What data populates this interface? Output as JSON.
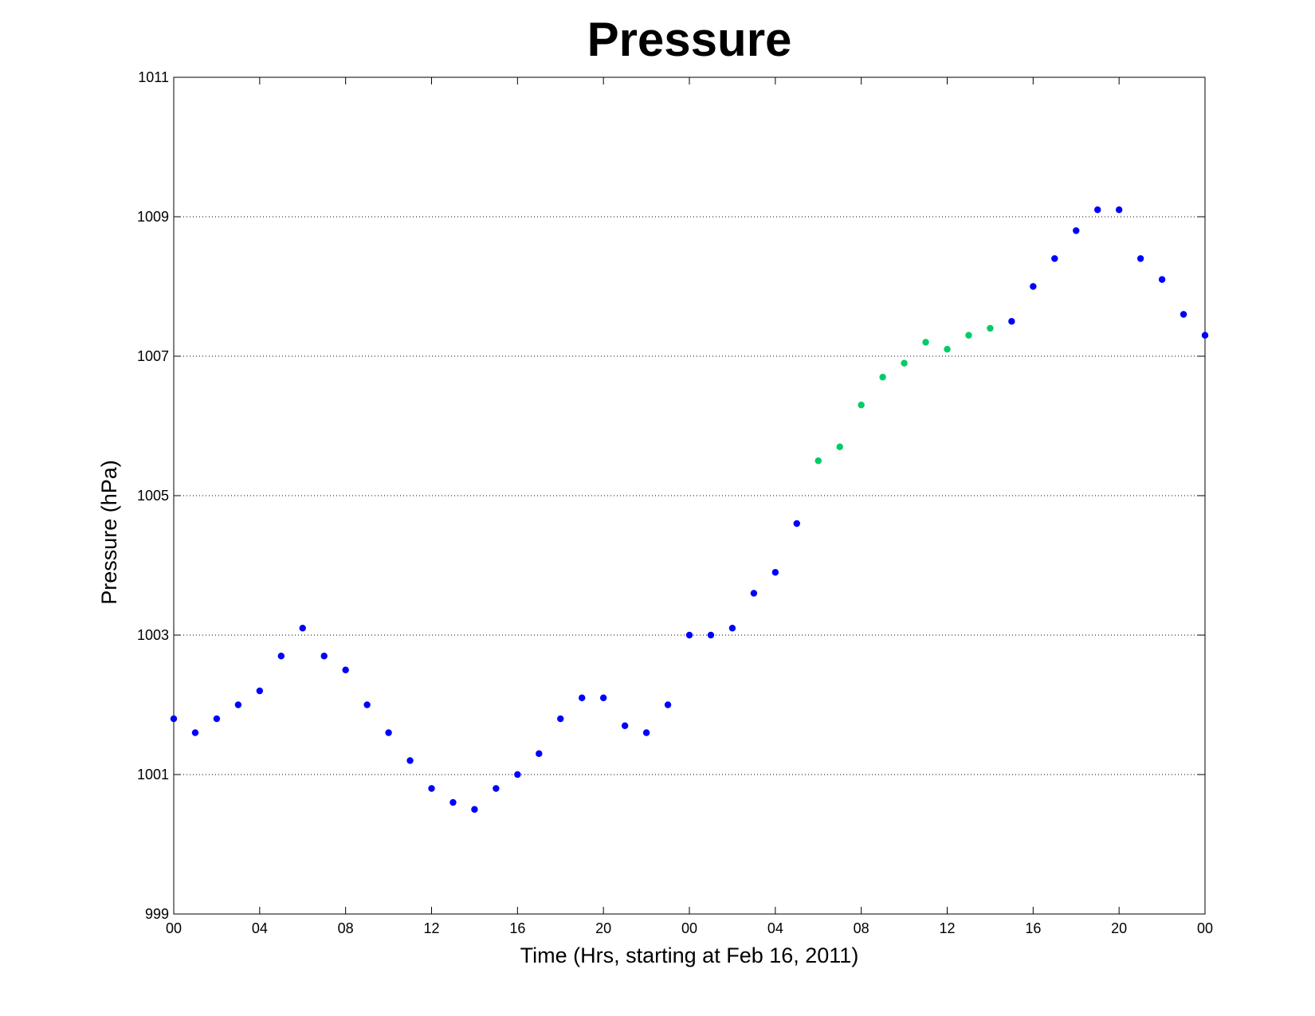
{
  "chart_data": {
    "type": "scatter",
    "title": "Pressure",
    "xlabel": "Time (Hrs, starting at Feb 16, 2011)",
    "ylabel": "Pressure (hPa)",
    "xlim": [
      0,
      48
    ],
    "ylim": [
      999,
      1011
    ],
    "x_ticks": [
      {
        "x": 0,
        "label": "00"
      },
      {
        "x": 4,
        "label": "04"
      },
      {
        "x": 8,
        "label": "08"
      },
      {
        "x": 12,
        "label": "12"
      },
      {
        "x": 16,
        "label": "16"
      },
      {
        "x": 20,
        "label": "20"
      },
      {
        "x": 24,
        "label": "00"
      },
      {
        "x": 28,
        "label": "04"
      },
      {
        "x": 32,
        "label": "08"
      },
      {
        "x": 36,
        "label": "12"
      },
      {
        "x": 40,
        "label": "16"
      },
      {
        "x": 44,
        "label": "20"
      },
      {
        "x": 48,
        "label": "00"
      }
    ],
    "y_ticks": [
      999,
      1001,
      1003,
      1005,
      1007,
      1009,
      1011
    ],
    "grid": "y-dotted",
    "colors": {
      "blue": "#0000ff",
      "green": "#00cc66"
    },
    "points": [
      {
        "x": 0,
        "y": 1001.8,
        "color": "blue"
      },
      {
        "x": 1,
        "y": 1001.6,
        "color": "blue"
      },
      {
        "x": 2,
        "y": 1001.8,
        "color": "blue"
      },
      {
        "x": 3,
        "y": 1002.0,
        "color": "blue"
      },
      {
        "x": 4,
        "y": 1002.2,
        "color": "blue"
      },
      {
        "x": 5,
        "y": 1002.7,
        "color": "blue"
      },
      {
        "x": 6,
        "y": 1003.1,
        "color": "blue"
      },
      {
        "x": 7,
        "y": 1002.7,
        "color": "blue"
      },
      {
        "x": 8,
        "y": 1002.5,
        "color": "blue"
      },
      {
        "x": 9,
        "y": 1002.0,
        "color": "blue"
      },
      {
        "x": 10,
        "y": 1001.6,
        "color": "blue"
      },
      {
        "x": 11,
        "y": 1001.2,
        "color": "blue"
      },
      {
        "x": 12,
        "y": 1000.8,
        "color": "blue"
      },
      {
        "x": 13,
        "y": 1000.6,
        "color": "blue"
      },
      {
        "x": 14,
        "y": 1000.5,
        "color": "blue"
      },
      {
        "x": 15,
        "y": 1000.8,
        "color": "blue"
      },
      {
        "x": 16,
        "y": 1001.0,
        "color": "blue"
      },
      {
        "x": 17,
        "y": 1001.3,
        "color": "blue"
      },
      {
        "x": 18,
        "y": 1001.8,
        "color": "blue"
      },
      {
        "x": 19,
        "y": 1002.1,
        "color": "blue"
      },
      {
        "x": 20,
        "y": 1002.1,
        "color": "blue"
      },
      {
        "x": 21,
        "y": 1001.7,
        "color": "blue"
      },
      {
        "x": 22,
        "y": 1001.6,
        "color": "blue"
      },
      {
        "x": 23,
        "y": 1002.0,
        "color": "blue"
      },
      {
        "x": 24,
        "y": 1003.0,
        "color": "blue"
      },
      {
        "x": 25,
        "y": 1003.0,
        "color": "blue"
      },
      {
        "x": 26,
        "y": 1003.1,
        "color": "blue"
      },
      {
        "x": 27,
        "y": 1003.6,
        "color": "blue"
      },
      {
        "x": 28,
        "y": 1003.9,
        "color": "blue"
      },
      {
        "x": 29,
        "y": 1004.6,
        "color": "blue"
      },
      {
        "x": 30,
        "y": 1005.5,
        "color": "green"
      },
      {
        "x": 31,
        "y": 1005.7,
        "color": "green"
      },
      {
        "x": 32,
        "y": 1006.3,
        "color": "green"
      },
      {
        "x": 33,
        "y": 1006.7,
        "color": "green"
      },
      {
        "x": 34,
        "y": 1006.9,
        "color": "green"
      },
      {
        "x": 35,
        "y": 1007.2,
        "color": "green"
      },
      {
        "x": 36,
        "y": 1007.1,
        "color": "green"
      },
      {
        "x": 37,
        "y": 1007.3,
        "color": "green"
      },
      {
        "x": 38,
        "y": 1007.4,
        "color": "green"
      },
      {
        "x": 39,
        "y": 1007.5,
        "color": "blue"
      },
      {
        "x": 40,
        "y": 1008.0,
        "color": "blue"
      },
      {
        "x": 41,
        "y": 1008.4,
        "color": "blue"
      },
      {
        "x": 42,
        "y": 1008.8,
        "color": "blue"
      },
      {
        "x": 43,
        "y": 1009.1,
        "color": "blue"
      },
      {
        "x": 44,
        "y": 1009.1,
        "color": "blue"
      },
      {
        "x": 45,
        "y": 1008.4,
        "color": "blue"
      },
      {
        "x": 46,
        "y": 1008.1,
        "color": "blue"
      },
      {
        "x": 47,
        "y": 1007.6,
        "color": "blue"
      },
      {
        "x": 48,
        "y": 1007.3,
        "color": "blue"
      }
    ]
  }
}
